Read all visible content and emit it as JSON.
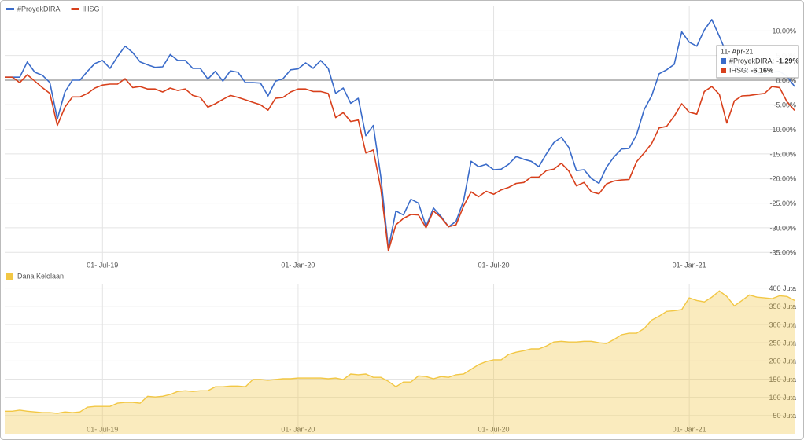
{
  "chart_data": [
    {
      "type": "line",
      "categories": [
        null,
        null,
        null,
        null,
        null,
        null,
        null,
        null,
        null,
        null,
        null,
        null,
        null,
        "01- Jul-19",
        null,
        null,
        null,
        null,
        null,
        null,
        null,
        null,
        null,
        null,
        null,
        null,
        null,
        null,
        null,
        null,
        null,
        null,
        null,
        null,
        null,
        null,
        null,
        null,
        null,
        "01- Jan-20",
        null,
        null,
        null,
        null,
        null,
        null,
        null,
        null,
        null,
        null,
        null,
        null,
        null,
        null,
        null,
        null,
        null,
        null,
        null,
        null,
        null,
        null,
        null,
        null,
        null,
        "01- Jul-20",
        null,
        null,
        null,
        null,
        null,
        null,
        null,
        null,
        null,
        null,
        null,
        null,
        null,
        null,
        null,
        null,
        null,
        null,
        null,
        null,
        null,
        null,
        null,
        null,
        null,
        "01- Jan-21",
        null,
        null,
        null,
        null,
        null,
        null,
        null,
        null,
        null,
        null,
        null,
        null,
        null,
        null
      ],
      "series": [
        {
          "name": "#ProyekDIRA",
          "color": "#3a6bc9",
          "values": [
            0.6,
            0.6,
            0.6,
            3.7,
            1.6,
            1,
            -0.5,
            -7.9,
            -2.4,
            0,
            0,
            1.8,
            3.4,
            4,
            2.4,
            4.8,
            6.9,
            5.6,
            3.7,
            3.1,
            2.6,
            2.7,
            5.2,
            4,
            4,
            2.4,
            2.4,
            0.2,
            1.8,
            -0.2,
            1.9,
            1.6,
            -0.5,
            -0.5,
            -0.6,
            -3.2,
            -0.2,
            0.3,
            2.1,
            2.3,
            3.5,
            2.4,
            4,
            2.4,
            -2.7,
            -1.6,
            -4.7,
            -3.7,
            -11.3,
            -9.2,
            -19.7,
            -34.2,
            -26.6,
            -27.4,
            -24.2,
            -25,
            -29.7,
            -26,
            -27.7,
            -29.8,
            -28.7,
            -24.5,
            -16.5,
            -17.6,
            -17.1,
            -18.2,
            -18.1,
            -17.1,
            -15.5,
            -16.1,
            -16.5,
            -17.6,
            -15,
            -12.7,
            -11.6,
            -13.7,
            -18.4,
            -18.2,
            -20,
            -21,
            -17.7,
            -15.6,
            -14,
            -13.9,
            -11.1,
            -6,
            -3.2,
            1.3,
            2.1,
            3.2,
            9.8,
            7.7,
            6.9,
            10.2,
            12.3,
            8.9,
            5.3,
            2.9,
            2.4,
            1.8,
            1.3,
            1.1,
            1.6,
            1.8,
            0.8,
            -1.29
          ]
        },
        {
          "name": "IHSG",
          "color": "#d8401c",
          "values": [
            0.6,
            0.6,
            -0.5,
            1.1,
            -0.2,
            -1.5,
            -2.7,
            -9.2,
            -5.5,
            -3.4,
            -3.4,
            -2.7,
            -1.6,
            -1,
            -0.8,
            -0.8,
            0.3,
            -1.5,
            -1.3,
            -1.8,
            -1.8,
            -2.4,
            -1.6,
            -2.1,
            -1.8,
            -3.1,
            -3.5,
            -5.5,
            -4.8,
            -3.9,
            -3.1,
            -3.5,
            -4,
            -4.5,
            -5,
            -6.1,
            -3.7,
            -3.5,
            -2.4,
            -1.8,
            -1.8,
            -2.3,
            -2.3,
            -2.7,
            -7.6,
            -6.6,
            -8.4,
            -8.1,
            -14.8,
            -14.2,
            -22.1,
            -34.7,
            -29.4,
            -28.1,
            -27.3,
            -27.4,
            -30,
            -26.6,
            -27.9,
            -29.8,
            -29.4,
            -25.6,
            -22.7,
            -23.7,
            -22.6,
            -23.2,
            -22.3,
            -21.8,
            -21,
            -20.8,
            -19.7,
            -19.7,
            -18.4,
            -18.1,
            -16.9,
            -18.5,
            -21.5,
            -20.8,
            -22.7,
            -23.1,
            -21.1,
            -20.5,
            -20.3,
            -20.2,
            -16.6,
            -14.8,
            -12.9,
            -9.7,
            -9.4,
            -7.3,
            -4.8,
            -6.5,
            -6.9,
            -2.3,
            -1.3,
            -2.9,
            -8.7,
            -4.2,
            -3.2,
            -3.1,
            -2.9,
            -2.7,
            -1.3,
            -1.5,
            -4.4,
            -6.16
          ]
        }
      ],
      "ylim": [
        -38,
        15
      ],
      "yticks": [
        {
          "value": 10,
          "label": "10.00%"
        },
        {
          "value": 5,
          "label": "5.00%"
        },
        {
          "value": 0,
          "label": "0.00%"
        },
        {
          "value": -5,
          "label": "-5.00%"
        },
        {
          "value": -10,
          "label": "-10.00%"
        },
        {
          "value": -15,
          "label": "-15.00%"
        },
        {
          "value": -20,
          "label": "-20.00%"
        },
        {
          "value": -25,
          "label": "-25.00%"
        },
        {
          "value": -30,
          "label": "-30.00%"
        },
        {
          "value": -35,
          "label": "-35.00%"
        }
      ],
      "grid": true,
      "legend": "top-left",
      "tooltip": {
        "title": "11- Apr-21",
        "items": [
          {
            "label": "#ProyekDIRA:",
            "value": "-1.29%"
          },
          {
            "label": "IHSG:",
            "value": "-6.16%"
          }
        ]
      }
    },
    {
      "type": "area",
      "categories": [
        null,
        null,
        null,
        null,
        null,
        null,
        null,
        null,
        null,
        null,
        null,
        null,
        null,
        "01- Jul-19",
        null,
        null,
        null,
        null,
        null,
        null,
        null,
        null,
        null,
        null,
        null,
        null,
        null,
        null,
        null,
        null,
        null,
        null,
        null,
        null,
        null,
        null,
        null,
        null,
        null,
        "01- Jan-20",
        null,
        null,
        null,
        null,
        null,
        null,
        null,
        null,
        null,
        null,
        null,
        null,
        null,
        null,
        null,
        null,
        null,
        null,
        null,
        null,
        null,
        null,
        null,
        null,
        null,
        "01- Jul-20",
        null,
        null,
        null,
        null,
        null,
        null,
        null,
        null,
        null,
        null,
        null,
        null,
        null,
        null,
        null,
        null,
        null,
        null,
        null,
        null,
        null,
        null,
        null,
        null,
        null,
        "01- Jan-21",
        null,
        null,
        null,
        null,
        null,
        null,
        null,
        null,
        null,
        null,
        null,
        null,
        null,
        null
      ],
      "series": [
        {
          "name": "Dana Kelolaan",
          "color": "#f2c744",
          "values": [
            62,
            62,
            65,
            62,
            60,
            58,
            58,
            56,
            60,
            58,
            60,
            73,
            75,
            75,
            75,
            84,
            86,
            86,
            84,
            103,
            101,
            103,
            108,
            116,
            118,
            116,
            118,
            118,
            129,
            129,
            131,
            131,
            129,
            149,
            149,
            147,
            149,
            151,
            151,
            153,
            153,
            153,
            153,
            151,
            153,
            149,
            164,
            162,
            164,
            155,
            155,
            144,
            129,
            142,
            142,
            159,
            157,
            151,
            157,
            155,
            162,
            164,
            177,
            190,
            198,
            203,
            203,
            218,
            224,
            228,
            233,
            233,
            241,
            252,
            254,
            252,
            252,
            254,
            254,
            250,
            248,
            259,
            272,
            276,
            276,
            289,
            312,
            323,
            336,
            338,
            341,
            373,
            366,
            362,
            375,
            392,
            377,
            351,
            366,
            381,
            375,
            373,
            371,
            379,
            377,
            366
          ]
        }
      ],
      "ylim": [
        0,
        410
      ],
      "yticks": [
        {
          "value": 50,
          "label": "50 Juta"
        },
        {
          "value": 100,
          "label": "100 Juta"
        },
        {
          "value": 150,
          "label": "150 Juta"
        },
        {
          "value": 200,
          "label": "200 Juta"
        },
        {
          "value": 250,
          "label": "250 Juta"
        },
        {
          "value": 300,
          "label": "300 Juta"
        },
        {
          "value": 350,
          "label": "350 Juta"
        },
        {
          "value": 400,
          "label": "400 Juta"
        }
      ],
      "grid": true,
      "legend": "top-left"
    }
  ]
}
